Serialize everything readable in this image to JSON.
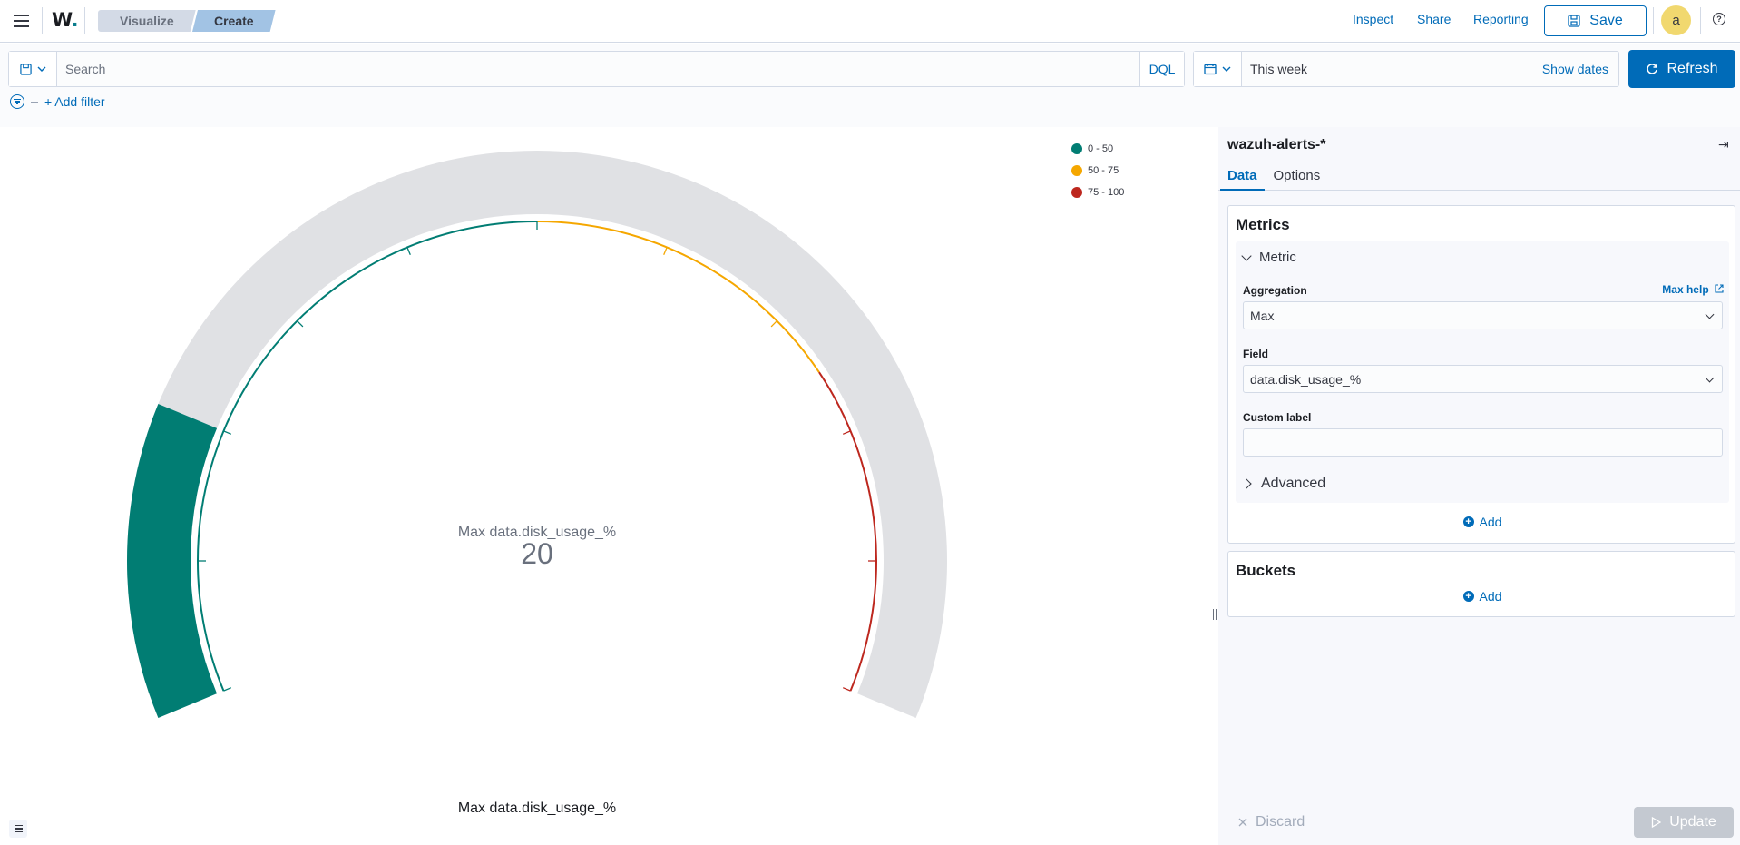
{
  "header": {
    "logo": "W.",
    "breadcrumbs": [
      "Visualize",
      "Create"
    ],
    "links": {
      "inspect": "Inspect",
      "share": "Share",
      "reporting": "Reporting"
    },
    "save_label": "Save",
    "avatar_initial": "a",
    "help_icon": "?"
  },
  "query": {
    "search_placeholder": "Search",
    "language": "DQL",
    "date_range": "This week",
    "show_dates": "Show dates",
    "refresh_label": "Refresh",
    "add_filter": "+ Add filter"
  },
  "chart_data": {
    "type": "gauge",
    "metric_label": "Max data.disk_usage_%",
    "value": 20,
    "min": 0,
    "max": 100,
    "ranges": [
      {
        "label": "0 - 50",
        "from": 0,
        "to": 50,
        "color": "#017d73"
      },
      {
        "label": "50 - 75",
        "from": 50,
        "to": 75,
        "color": "#f5a700"
      },
      {
        "label": "75 - 100",
        "from": 75,
        "to": 100,
        "color": "#bd271e"
      }
    ],
    "title": "Max data.disk_usage_%"
  },
  "editor": {
    "index_pattern": "wazuh-alerts-*",
    "tabs": [
      "Data",
      "Options"
    ],
    "metrics": {
      "title": "Metrics",
      "metric_header": "Metric",
      "aggregation_label": "Aggregation",
      "aggregation_help": "Max help",
      "aggregation_value": "Max",
      "field_label": "Field",
      "field_value": "data.disk_usage_%",
      "custom_label": "Custom label",
      "custom_value": "",
      "advanced": "Advanced",
      "add": "Add"
    },
    "buckets": {
      "title": "Buckets",
      "add": "Add"
    },
    "discard": "Discard",
    "update": "Update"
  }
}
